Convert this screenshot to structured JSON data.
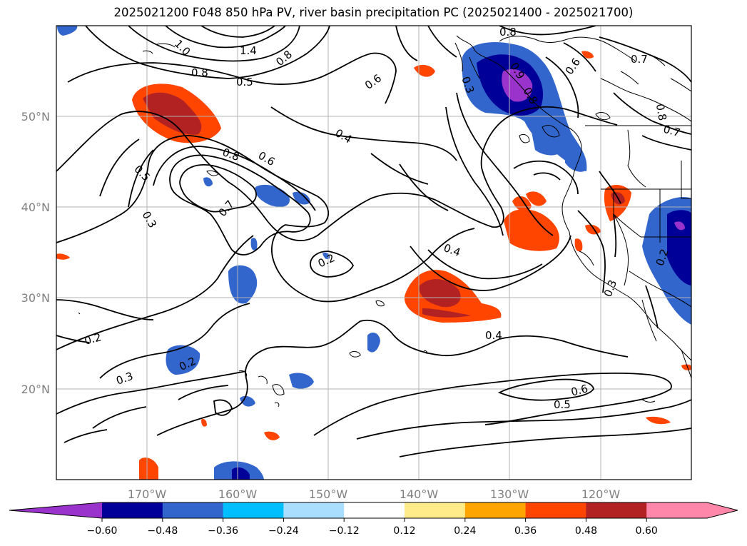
{
  "title": "2025021200 F048 850 hPa PV, river basin precipitation PC (2025021400 - 2025021700)",
  "map": {
    "lon_ticks": [
      "170°W",
      "160°W",
      "150°W",
      "140°W",
      "130°W",
      "120°W"
    ],
    "lat_ticks": [
      "50°N",
      "40°N",
      "30°N",
      "20°N"
    ],
    "contour_labels": [
      "1.0",
      "1.4",
      "0.8",
      "0.8",
      "0.5",
      "0.6",
      "0.8",
      "0.7",
      "0.9",
      "0.3",
      "0.8",
      "0.6",
      "0.8",
      "0.7",
      "0.4",
      "0.8",
      "0.6",
      "0.5",
      "0.7",
      "0.3",
      "0.2",
      "0.4",
      "0.2",
      "0.3",
      "0.3",
      "0.2",
      "0.4",
      "0.2",
      "0.6",
      "0.5"
    ],
    "grid": true
  },
  "colorbar": {
    "ticks": [
      "−0.60",
      "−0.48",
      "−0.36",
      "−0.24",
      "−0.12",
      "0.12",
      "0.24",
      "0.36",
      "0.48",
      "0.60"
    ],
    "colors": [
      "#9933cc",
      "#000099",
      "#3366cc",
      "#00bfff",
      "#aadeff",
      "#ffffff",
      "#ffeb8a",
      "#ffa500",
      "#ff4500",
      "#b22222",
      "#ff88aa",
      "#ff88aa"
    ]
  }
}
